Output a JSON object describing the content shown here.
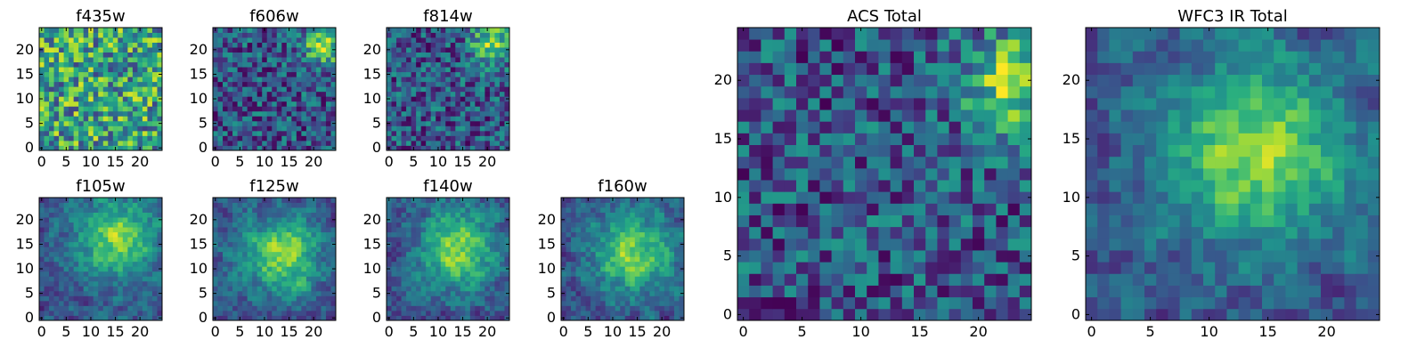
{
  "chart_data": [
    {
      "type": "heatmap",
      "title": "f435w",
      "x_ticks": [
        0,
        5,
        10,
        15,
        20
      ],
      "y_ticks": [
        0,
        5,
        10,
        15,
        20
      ],
      "xlim": [
        -0.5,
        24.5
      ],
      "ylim": [
        -0.5,
        24.5
      ],
      "grid_size": 25,
      "colormap": "viridis",
      "pattern": "noise",
      "hotspot": [
        null,
        null
      ],
      "seed": 11
    },
    {
      "type": "heatmap",
      "title": "f606w",
      "x_ticks": [
        0,
        5,
        10,
        15,
        20
      ],
      "y_ticks": [
        0,
        5,
        10,
        15,
        20
      ],
      "xlim": [
        -0.5,
        24.5
      ],
      "ylim": [
        -0.5,
        24.5
      ],
      "grid_size": 25,
      "colormap": "viridis",
      "pattern": "noise",
      "hotspot": [
        22,
        21
      ],
      "seed": 23
    },
    {
      "type": "heatmap",
      "title": "f814w",
      "x_ticks": [
        0,
        5,
        10,
        15,
        20
      ],
      "y_ticks": [
        0,
        5,
        10,
        15,
        20
      ],
      "xlim": [
        -0.5,
        24.5
      ],
      "ylim": [
        -0.5,
        24.5
      ],
      "grid_size": 25,
      "colormap": "viridis",
      "pattern": "noise",
      "hotspot": [
        21,
        21
      ],
      "seed": 37
    },
    {
      "type": "heatmap",
      "title": "f105w",
      "x_ticks": [
        0,
        5,
        10,
        15,
        20
      ],
      "y_ticks": [
        0,
        5,
        10,
        15,
        20
      ],
      "xlim": [
        -0.5,
        24.5
      ],
      "ylim": [
        -0.5,
        24.5
      ],
      "grid_size": 25,
      "colormap": "viridis",
      "pattern": "blob",
      "hotspot": [
        15,
        16
      ],
      "seed": 41
    },
    {
      "type": "heatmap",
      "title": "f125w",
      "x_ticks": [
        0,
        5,
        10,
        15,
        20
      ],
      "y_ticks": [
        0,
        5,
        10,
        15,
        20
      ],
      "xlim": [
        -0.5,
        24.5
      ],
      "ylim": [
        -0.5,
        24.5
      ],
      "grid_size": 25,
      "colormap": "viridis",
      "pattern": "blob",
      "hotspot": [
        14,
        13
      ],
      "seed": 53
    },
    {
      "type": "heatmap",
      "title": "f140w",
      "x_ticks": [
        0,
        5,
        10,
        15,
        20
      ],
      "y_ticks": [
        0,
        5,
        10,
        15,
        20
      ],
      "xlim": [
        -0.5,
        24.5
      ],
      "ylim": [
        -0.5,
        24.5
      ],
      "grid_size": 25,
      "colormap": "viridis",
      "pattern": "blob",
      "hotspot": [
        14,
        14
      ],
      "seed": 67
    },
    {
      "type": "heatmap",
      "title": "f160w",
      "x_ticks": [
        0,
        5,
        10,
        15,
        20
      ],
      "y_ticks": [
        0,
        5,
        10,
        15,
        20
      ],
      "xlim": [
        -0.5,
        24.5
      ],
      "ylim": [
        -0.5,
        24.5
      ],
      "grid_size": 25,
      "colormap": "viridis",
      "pattern": "blob",
      "hotspot": [
        14,
        13
      ],
      "seed": 79
    },
    {
      "type": "heatmap",
      "title": "ACS Total",
      "x_ticks": [
        0,
        5,
        10,
        15,
        20
      ],
      "y_ticks": [
        0,
        5,
        10,
        15,
        20
      ],
      "xlim": [
        -0.5,
        24.5
      ],
      "ylim": [
        -0.5,
        24.5
      ],
      "grid_size": 25,
      "colormap": "viridis",
      "pattern": "noise",
      "hotspot": [
        23,
        20
      ],
      "seed": 97
    },
    {
      "type": "heatmap",
      "title": "WFC3 IR Total",
      "x_ticks": [
        0,
        5,
        10,
        15,
        20
      ],
      "y_ticks": [
        0,
        5,
        10,
        15,
        20
      ],
      "xlim": [
        -0.5,
        24.5
      ],
      "ylim": [
        -0.5,
        24.5
      ],
      "grid_size": 25,
      "colormap": "viridis",
      "pattern": "blob",
      "hotspot": [
        14,
        14
      ],
      "seed": 113
    }
  ]
}
